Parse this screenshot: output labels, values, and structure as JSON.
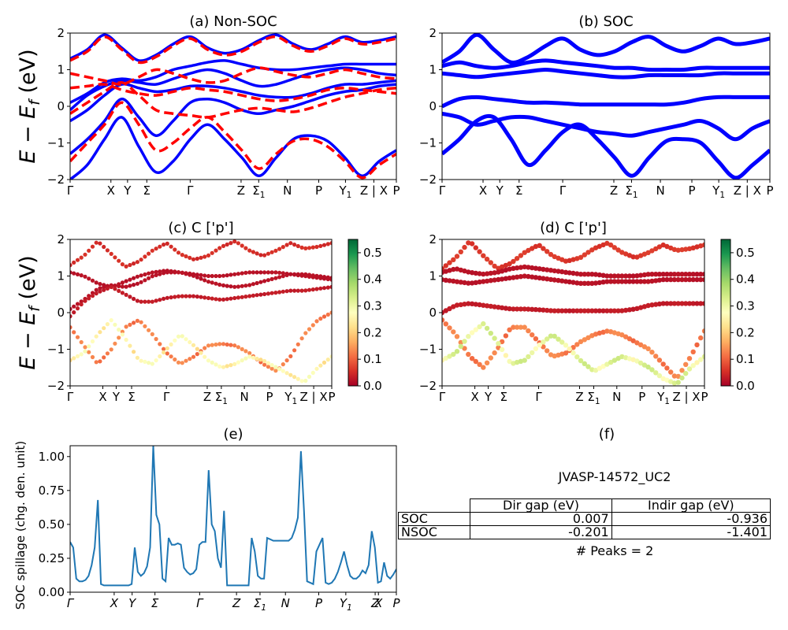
{
  "kpath": [
    "Γ",
    "X",
    "Y",
    "Σ",
    "Γ",
    "Z",
    "Σ1",
    "N",
    "P",
    "Y1",
    "Z | X",
    "P"
  ],
  "chart_data": [
    {
      "id": "a",
      "type": "line",
      "title": "(a) Non-SOC",
      "ylabel": "E − E_f (eV)",
      "ylim": [
        -2,
        2
      ],
      "yticks": [
        -2,
        -1,
        0,
        1,
        2
      ],
      "series": [
        {
          "style": "solid-blue",
          "bands": [
            [
              1.3,
              1.55,
              1.95,
              1.6,
              1.25,
              1.4,
              1.7,
              1.9,
              1.6,
              1.45,
              1.55,
              1.8,
              1.95,
              1.7,
              1.55,
              1.7,
              1.9,
              1.75,
              1.8,
              1.9
            ],
            [
              0.1,
              0.35,
              0.65,
              0.75,
              0.7,
              0.8,
              1.0,
              1.1,
              1.2,
              1.25,
              1.15,
              1.05,
              1.0,
              1.0,
              1.05,
              1.1,
              1.15,
              1.15,
              1.15,
              1.15
            ],
            [
              -0.1,
              0.3,
              0.55,
              0.7,
              0.65,
              0.6,
              0.75,
              0.9,
              1.0,
              0.9,
              0.7,
              0.55,
              0.6,
              0.75,
              0.9,
              1.0,
              1.05,
              1.0,
              0.9,
              0.85
            ],
            [
              -0.4,
              -0.1,
              0.3,
              0.6,
              0.5,
              0.4,
              0.45,
              0.55,
              0.55,
              0.5,
              0.4,
              0.3,
              0.25,
              0.25,
              0.35,
              0.5,
              0.6,
              0.6,
              0.65,
              0.7
            ],
            [
              -1.3,
              -0.9,
              -0.4,
              0.2,
              -0.3,
              -0.8,
              -0.4,
              0.1,
              0.2,
              0.1,
              -0.1,
              -0.2,
              -0.1,
              0.0,
              0.15,
              0.3,
              0.4,
              0.45,
              0.55,
              0.6
            ],
            [
              -2.0,
              -1.6,
              -0.9,
              -0.3,
              -1.1,
              -1.8,
              -1.5,
              -0.9,
              -0.5,
              -0.9,
              -1.4,
              -1.9,
              -1.4,
              -0.9,
              -0.8,
              -0.95,
              -1.4,
              -1.9,
              -1.5,
              -1.2
            ]
          ]
        },
        {
          "style": "dashed-red",
          "bands": [
            [
              1.25,
              1.5,
              1.9,
              1.55,
              1.2,
              1.35,
              1.65,
              1.85,
              1.55,
              1.4,
              1.5,
              1.75,
              1.9,
              1.65,
              1.5,
              1.65,
              1.85,
              1.7,
              1.75,
              1.85
            ],
            [
              0.9,
              0.8,
              0.7,
              0.6,
              0.8,
              1.0,
              0.9,
              0.75,
              0.65,
              0.7,
              0.9,
              1.05,
              0.95,
              0.85,
              0.8,
              0.9,
              1.0,
              0.9,
              0.8,
              0.75
            ],
            [
              0.5,
              0.55,
              0.6,
              0.45,
              0.35,
              0.3,
              0.4,
              0.5,
              0.45,
              0.4,
              0.3,
              0.2,
              0.15,
              0.2,
              0.3,
              0.45,
              0.5,
              0.45,
              0.4,
              0.35
            ],
            [
              -0.2,
              0.1,
              0.4,
              0.65,
              0.3,
              -0.1,
              -0.2,
              -0.25,
              -0.3,
              -0.2,
              -0.1,
              -0.05,
              -0.1,
              -0.15,
              -0.05,
              0.1,
              0.25,
              0.35,
              0.45,
              0.5
            ],
            [
              -1.5,
              -1.0,
              -0.5,
              0.1,
              -0.5,
              -1.2,
              -1.0,
              -0.6,
              -0.3,
              -0.7,
              -1.2,
              -1.7,
              -1.3,
              -0.95,
              -0.9,
              -1.1,
              -1.5,
              -1.95,
              -1.6,
              -1.3
            ]
          ]
        }
      ]
    },
    {
      "id": "b",
      "type": "line",
      "title": "(b) SOC",
      "ylim": [
        -2,
        2
      ],
      "yticks": [
        -2,
        -1,
        0,
        1,
        2
      ],
      "series": [
        {
          "style": "solid-blue",
          "bands": [
            [
              1.2,
              1.5,
              1.95,
              1.55,
              1.2,
              1.35,
              1.65,
              1.85,
              1.55,
              1.4,
              1.5,
              1.75,
              1.9,
              1.65,
              1.5,
              1.65,
              1.85,
              1.7,
              1.75,
              1.85
            ],
            [
              1.1,
              1.2,
              1.1,
              1.05,
              1.1,
              1.2,
              1.25,
              1.2,
              1.15,
              1.1,
              1.05,
              1.05,
              1.0,
              1.0,
              1.0,
              1.05,
              1.05,
              1.05,
              1.05,
              1.05
            ],
            [
              0.9,
              0.85,
              0.8,
              0.85,
              0.9,
              0.95,
              1.0,
              0.95,
              0.9,
              0.85,
              0.8,
              0.8,
              0.85,
              0.85,
              0.85,
              0.85,
              0.9,
              0.9,
              0.9,
              0.9
            ],
            [
              0.0,
              0.2,
              0.25,
              0.2,
              0.15,
              0.1,
              0.1,
              0.08,
              0.05,
              0.05,
              0.05,
              0.05,
              0.05,
              0.05,
              0.1,
              0.2,
              0.25,
              0.25,
              0.25,
              0.25
            ],
            [
              -0.2,
              -0.3,
              -0.5,
              -0.4,
              -0.3,
              -0.3,
              -0.4,
              -0.5,
              -0.6,
              -0.7,
              -0.75,
              -0.8,
              -0.7,
              -0.6,
              -0.5,
              -0.4,
              -0.6,
              -0.9,
              -0.6,
              -0.4
            ],
            [
              -1.3,
              -0.9,
              -0.4,
              -0.3,
              -0.9,
              -1.6,
              -1.2,
              -0.7,
              -0.5,
              -0.9,
              -1.4,
              -1.9,
              -1.4,
              -0.95,
              -0.9,
              -1.0,
              -1.5,
              -1.95,
              -1.6,
              -1.2
            ]
          ]
        }
      ]
    },
    {
      "id": "c",
      "type": "scatter",
      "title": "(c)  C ['p']",
      "ylabel": "E − E_f (eV)",
      "ylim": [
        -2,
        2
      ],
      "yticks": [
        -2,
        -1,
        0,
        1,
        2
      ],
      "colorbar": {
        "min": 0.0,
        "max": 0.55,
        "ticks": [
          "0.0",
          "0.1",
          "0.2",
          "0.3",
          "0.4",
          "0.5"
        ],
        "cmap": "RdYlGn"
      },
      "bands": [
        {
          "weight": 0.05,
          "values": [
            1.3,
            1.55,
            1.95,
            1.6,
            1.25,
            1.4,
            1.7,
            1.9,
            1.6,
            1.45,
            1.55,
            1.8,
            1.95,
            1.7,
            1.55,
            1.7,
            1.9,
            1.75,
            1.8,
            1.9
          ]
        },
        {
          "weight": 0.02,
          "values": [
            1.1,
            1.0,
            0.8,
            0.7,
            0.85,
            1.0,
            1.1,
            1.15,
            1.1,
            1.05,
            1.0,
            1.0,
            1.05,
            1.1,
            1.1,
            1.1,
            1.05,
            1.0,
            0.95,
            0.9
          ]
        },
        {
          "weight": 0.02,
          "values": [
            0.1,
            0.35,
            0.65,
            0.75,
            0.7,
            0.8,
            1.0,
            1.1,
            1.1,
            1.0,
            0.85,
            0.75,
            0.7,
            0.75,
            0.85,
            0.95,
            1.05,
            1.05,
            1.0,
            0.95
          ]
        },
        {
          "weight": 0.03,
          "values": [
            -0.1,
            0.3,
            0.55,
            0.7,
            0.5,
            0.3,
            0.3,
            0.4,
            0.45,
            0.45,
            0.4,
            0.35,
            0.4,
            0.45,
            0.5,
            0.55,
            0.6,
            0.6,
            0.65,
            0.7
          ]
        },
        {
          "weight": 0.12,
          "values": [
            -0.4,
            -0.9,
            -1.4,
            -1.0,
            -0.4,
            -0.2,
            -0.6,
            -1.1,
            -1.4,
            -1.2,
            -0.9,
            -0.85,
            -0.9,
            -1.1,
            -1.4,
            -1.6,
            -1.2,
            -0.6,
            -0.2,
            0.0
          ]
        },
        {
          "weight": 0.25,
          "values": [
            -1.3,
            -1.1,
            -0.6,
            -0.2,
            -0.7,
            -1.3,
            -1.4,
            -1.0,
            -0.6,
            -0.9,
            -1.3,
            -1.5,
            -1.4,
            -1.2,
            -1.3,
            -1.5,
            -1.7,
            -1.9,
            -1.5,
            -1.2
          ]
        }
      ]
    },
    {
      "id": "d",
      "type": "scatter",
      "title": "(d) C ['p']",
      "ylim": [
        -2,
        2
      ],
      "yticks": [
        -2,
        -1,
        0,
        1,
        2
      ],
      "colorbar": {
        "min": 0.0,
        "max": 0.55,
        "ticks": [
          "0.0",
          "0.1",
          "0.2",
          "0.3",
          "0.4",
          "0.5"
        ],
        "cmap": "RdYlGn"
      },
      "bands": [
        {
          "weight": 0.06,
          "values": [
            1.2,
            1.5,
            1.95,
            1.55,
            1.2,
            1.35,
            1.65,
            1.85,
            1.55,
            1.4,
            1.5,
            1.75,
            1.9,
            1.65,
            1.5,
            1.65,
            1.85,
            1.7,
            1.75,
            1.85
          ]
        },
        {
          "weight": 0.02,
          "values": [
            1.1,
            1.2,
            1.1,
            1.05,
            1.1,
            1.2,
            1.25,
            1.2,
            1.15,
            1.1,
            1.05,
            1.05,
            1.0,
            1.0,
            1.0,
            1.05,
            1.05,
            1.05,
            1.05,
            1.05
          ]
        },
        {
          "weight": 0.02,
          "values": [
            0.9,
            0.85,
            0.8,
            0.85,
            0.9,
            0.95,
            1.0,
            0.95,
            0.9,
            0.85,
            0.8,
            0.8,
            0.85,
            0.85,
            0.85,
            0.85,
            0.9,
            0.9,
            0.9,
            0.9
          ]
        },
        {
          "weight": 0.03,
          "values": [
            0.0,
            0.2,
            0.25,
            0.2,
            0.15,
            0.1,
            0.1,
            0.08,
            0.05,
            0.05,
            0.05,
            0.05,
            0.05,
            0.05,
            0.1,
            0.2,
            0.25,
            0.25,
            0.25,
            0.25
          ]
        },
        {
          "weight": 0.12,
          "values": [
            -0.2,
            -0.6,
            -1.2,
            -1.5,
            -1.0,
            -0.4,
            -0.4,
            -0.8,
            -1.2,
            -1.1,
            -0.8,
            -0.6,
            -0.5,
            -0.6,
            -0.8,
            -1.0,
            -1.4,
            -1.8,
            -1.2,
            -0.5
          ]
        },
        {
          "weight": 0.3,
          "values": [
            -1.3,
            -1.1,
            -0.6,
            -0.3,
            -0.8,
            -1.4,
            -1.3,
            -0.9,
            -0.6,
            -0.9,
            -1.3,
            -1.6,
            -1.4,
            -1.2,
            -1.3,
            -1.5,
            -1.8,
            -1.95,
            -1.5,
            -1.2
          ]
        }
      ]
    },
    {
      "id": "e",
      "type": "line",
      "title": "(e)",
      "ylabel": "SOC spillage (chg. den. unit)",
      "ylim": [
        0,
        1.08
      ],
      "yticks": [
        "0.00",
        "0.25",
        "0.50",
        "0.75",
        "1.00"
      ],
      "xticklabels_italic": [
        "Γ",
        "X",
        "Y",
        "Σ",
        "Γ",
        "Z",
        "Σ1",
        "N",
        "P",
        "Y1",
        "Z",
        "X",
        "P"
      ],
      "color": "#1f77b4",
      "values": [
        0.37,
        0.33,
        0.1,
        0.08,
        0.08,
        0.09,
        0.12,
        0.2,
        0.33,
        0.68,
        0.06,
        0.05,
        0.05,
        0.05,
        0.05,
        0.05,
        0.05,
        0.05,
        0.05,
        0.05,
        0.06,
        0.33,
        0.15,
        0.12,
        0.14,
        0.19,
        0.33,
        1.08,
        0.57,
        0.5,
        0.1,
        0.08,
        0.4,
        0.35,
        0.35,
        0.36,
        0.35,
        0.18,
        0.15,
        0.13,
        0.14,
        0.17,
        0.35,
        0.37,
        0.37,
        0.9,
        0.5,
        0.45,
        0.25,
        0.18,
        0.6,
        0.05,
        0.05,
        0.05,
        0.05,
        0.05,
        0.05,
        0.05,
        0.05,
        0.4,
        0.3,
        0.12,
        0.1,
        0.1,
        0.4,
        0.39,
        0.38,
        0.38,
        0.38,
        0.38,
        0.38,
        0.38,
        0.4,
        0.46,
        0.55,
        1.04,
        0.6,
        0.08,
        0.07,
        0.06,
        0.3,
        0.35,
        0.4,
        0.07,
        0.06,
        0.07,
        0.1,
        0.15,
        0.22,
        0.3,
        0.2,
        0.12,
        0.1,
        0.1,
        0.12,
        0.16,
        0.14,
        0.2,
        0.45,
        0.33,
        0.07,
        0.08,
        0.22,
        0.12,
        0.1,
        0.13,
        0.17
      ]
    }
  ],
  "panel_f": {
    "title": "(f)",
    "jid": "JVASP-14572_UC2",
    "table": {
      "headers": [
        "Dir gap (eV)",
        "Indir gap (eV)"
      ],
      "rows": [
        {
          "label": "SOC",
          "dir": "0.007",
          "indir": "-0.936"
        },
        {
          "label": "NSOC",
          "dir": "-0.201",
          "indir": "-1.401"
        }
      ]
    },
    "peaks": "# Peaks = 2"
  }
}
